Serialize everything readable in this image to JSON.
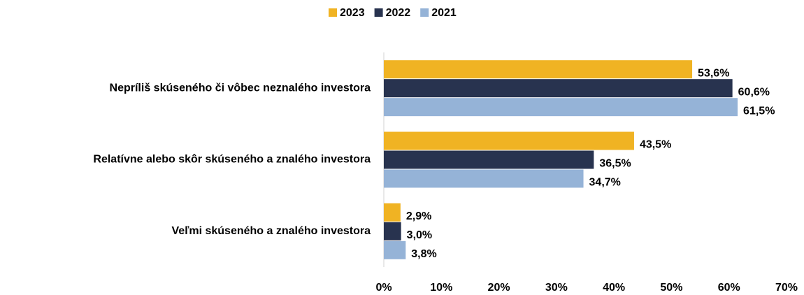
{
  "chart_data": {
    "type": "hbar",
    "categories": [
      "Nepríliš skúseného či vôbec neznalého investora",
      "Relatívne alebo skôr skúseného a znalého investora",
      "Veľmi skúseného a znalého investora"
    ],
    "series": [
      {
        "name": "2023",
        "color": "#F0B323",
        "values": [
          53.6,
          43.5,
          2.9
        ],
        "value_labels": [
          "53,6%",
          "43,5%",
          "2,9%"
        ]
      },
      {
        "name": "2022",
        "color": "#28334F",
        "values": [
          60.6,
          36.5,
          3.0
        ],
        "value_labels": [
          "60,6%",
          "36,5%",
          "3,0%"
        ]
      },
      {
        "name": "2021",
        "color": "#95B3D7",
        "values": [
          61.5,
          34.7,
          3.8
        ],
        "value_labels": [
          "61,5%",
          "34,7%",
          "3,8%"
        ]
      }
    ],
    "xlim": [
      0,
      70
    ],
    "xticks": [
      {
        "value": 0,
        "label": "0%"
      },
      {
        "value": 10,
        "label": "10%"
      },
      {
        "value": 20,
        "label": "20%"
      },
      {
        "value": 30,
        "label": "30%"
      },
      {
        "value": 40,
        "label": "40%"
      },
      {
        "value": 50,
        "label": "50%"
      },
      {
        "value": 60,
        "label": "60%"
      },
      {
        "value": 70,
        "label": "70%"
      }
    ],
    "legend": "top"
  }
}
